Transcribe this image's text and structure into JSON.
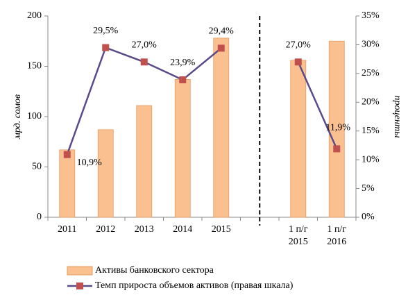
{
  "chart_data": {
    "type": "bar+line",
    "categories": [
      "2011",
      "2012",
      "2013",
      "2014",
      "2015",
      null,
      "1 п/г 2015",
      "1 п/г 2016"
    ],
    "series": [
      {
        "name": "Активы банковского сектора",
        "type": "bar",
        "color": "#fac090",
        "values": [
          67,
          87,
          111,
          137,
          178,
          null,
          156,
          175
        ]
      },
      {
        "name": "Темп прироста объемов активов (правая шкала)",
        "type": "line",
        "axis": "y2",
        "color": "#5b4a8a",
        "marker_color": "#c0504d",
        "values": [
          10.9,
          29.5,
          27.0,
          23.9,
          29.4,
          null,
          27.0,
          11.9
        ],
        "value_labels": [
          "10,9%",
          "29,5%",
          "27,0%",
          "23,9%",
          "29,4%",
          null,
          "27,0%",
          "11,9%"
        ]
      }
    ],
    "ylabel": "мрд. сомов",
    "y2label": "проценты",
    "ylim": [
      0,
      200
    ],
    "yticks": [
      0,
      50,
      100,
      150,
      200
    ],
    "y2lim": [
      0,
      35
    ],
    "y2ticks": [
      {
        "value": 0,
        "label": "0%"
      },
      {
        "value": 5,
        "label": "5%"
      },
      {
        "value": 10,
        "label": "10%"
      },
      {
        "value": 15,
        "label": "15%"
      },
      {
        "value": 20,
        "label": "20%"
      },
      {
        "value": 25,
        "label": "25%"
      },
      {
        "value": 30,
        "label": "30%"
      },
      {
        "value": 35,
        "label": "35%"
      }
    ],
    "grid": false
  }
}
